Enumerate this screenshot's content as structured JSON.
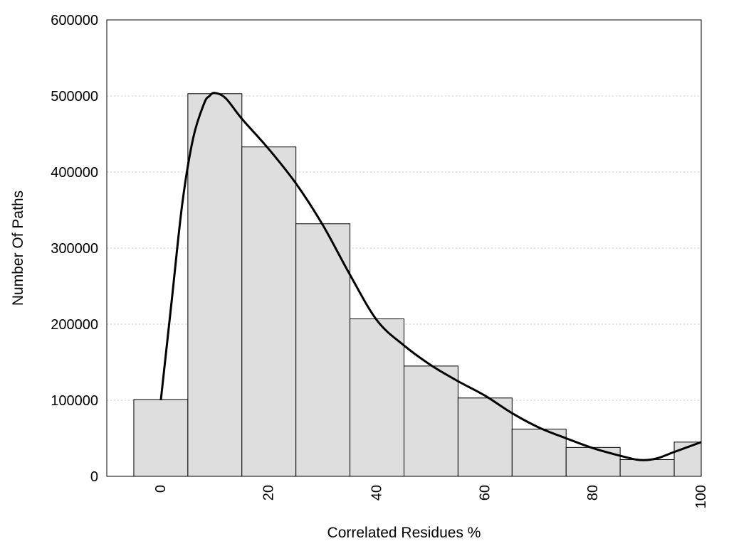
{
  "chart_data": {
    "type": "bar",
    "xlabel": "Correlated Residues %",
    "ylabel": "Number Of Paths",
    "title": "",
    "xlim": [
      -10,
      100
    ],
    "ylim": [
      0,
      600000
    ],
    "x_ticks": [
      0,
      20,
      40,
      60,
      80,
      100
    ],
    "y_ticks": [
      0,
      100000,
      200000,
      300000,
      400000,
      500000,
      600000
    ],
    "grid": "horizontal dotted",
    "bin_width": 10,
    "series": [
      {
        "x": [
          0,
          10,
          20,
          30,
          40,
          50,
          60,
          70,
          80,
          90,
          100
        ],
        "values": [
          101000,
          503000,
          433000,
          332000,
          207000,
          145000,
          103000,
          62000,
          38000,
          22000,
          45000
        ]
      }
    ],
    "curve": {
      "x": [
        0,
        2,
        4,
        6,
        8,
        9,
        10,
        12,
        15,
        20,
        25,
        30,
        35,
        40,
        45,
        50,
        55,
        60,
        65,
        70,
        75,
        80,
        85,
        88,
        90,
        92,
        95,
        100
      ],
      "y": [
        100000,
        230000,
        360000,
        445000,
        490000,
        500000,
        504000,
        497000,
        470000,
        430000,
        385000,
        330000,
        265000,
        205000,
        172000,
        146000,
        125000,
        106000,
        83000,
        64000,
        50000,
        37000,
        27000,
        22000,
        21500,
        24000,
        32000,
        45000
      ]
    },
    "colors": {
      "bar_fill": "#dedede",
      "bar_stroke": "#000000",
      "curve": "#000000",
      "grid": "#c8c8c8"
    }
  }
}
